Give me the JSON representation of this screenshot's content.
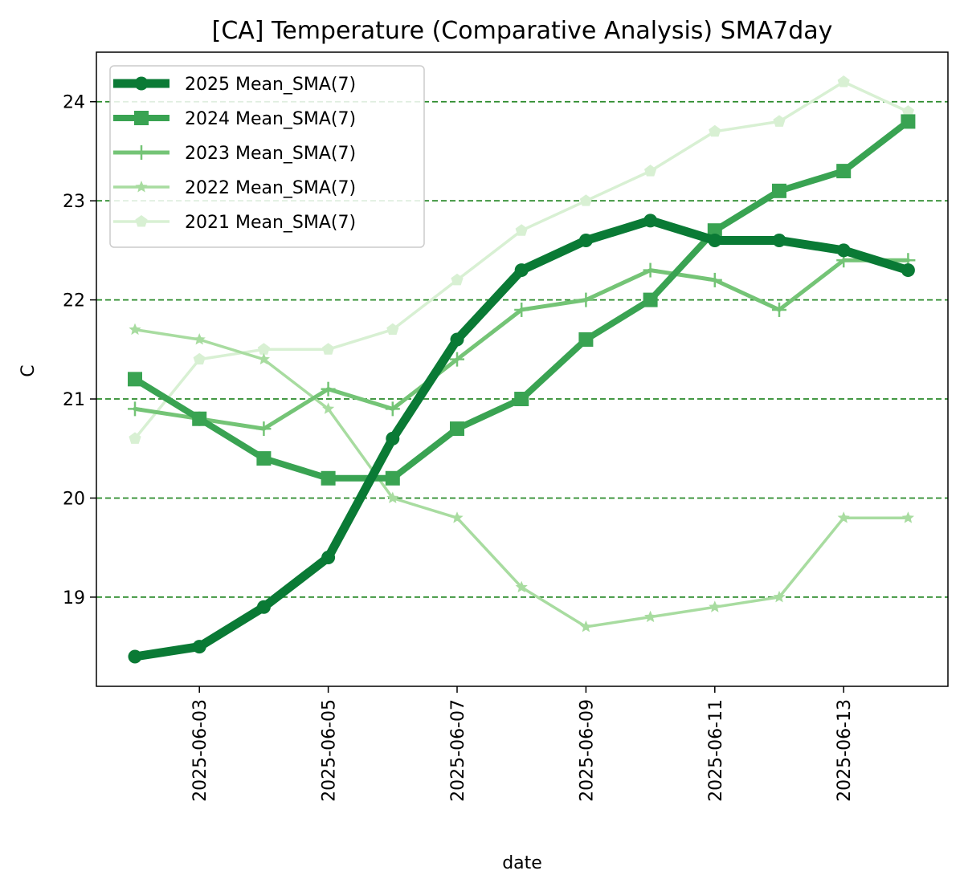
{
  "chart_data": {
    "type": "line",
    "title": "[CA] Temperature (Comparative Analysis) SMA7day",
    "xlabel": "date",
    "ylabel": "C",
    "x": [
      "2025-06-02",
      "2025-06-03",
      "2025-06-04",
      "2025-06-05",
      "2025-06-06",
      "2025-06-07",
      "2025-06-08",
      "2025-06-09",
      "2025-06-10",
      "2025-06-11",
      "2025-06-12",
      "2025-06-13",
      "2025-06-14"
    ],
    "xticks": [
      "2025-06-03",
      "2025-06-05",
      "2025-06-07",
      "2025-06-09",
      "2025-06-11",
      "2025-06-13"
    ],
    "yticks": [
      19,
      20,
      21,
      22,
      23,
      24
    ],
    "ylim": [
      18.1,
      24.5
    ],
    "grid": {
      "axis": "y",
      "style": "dashed",
      "color": "#2a8a2a"
    },
    "legend": "top-left",
    "series": [
      {
        "name": "2025 Mean_SMA(7)",
        "color": "#0a7a35",
        "marker": "circle",
        "lineweight": "heavy",
        "values": [
          18.4,
          18.5,
          18.9,
          19.4,
          20.6,
          21.6,
          22.3,
          22.6,
          22.8,
          22.6,
          22.6,
          22.5,
          22.3
        ]
      },
      {
        "name": "2024 Mean_SMA(7)",
        "color": "#39a352",
        "marker": "square",
        "lineweight": "bold",
        "values": [
          21.2,
          20.8,
          20.4,
          20.2,
          20.2,
          20.7,
          21.0,
          21.6,
          22.0,
          22.7,
          23.1,
          23.3,
          23.8
        ]
      },
      {
        "name": "2023 Mean_SMA(7)",
        "color": "#74c476",
        "marker": "plus",
        "lineweight": "medium",
        "values": [
          20.9,
          20.8,
          20.7,
          21.1,
          20.9,
          21.4,
          21.9,
          22.0,
          22.3,
          22.2,
          21.9,
          22.4,
          22.4
        ]
      },
      {
        "name": "2022 Mean_SMA(7)",
        "color": "#a8dca0",
        "marker": "star",
        "lineweight": "normal",
        "values": [
          21.7,
          21.6,
          21.4,
          20.9,
          20.0,
          19.8,
          19.1,
          18.7,
          18.8,
          18.9,
          19.0,
          19.8,
          19.8
        ]
      },
      {
        "name": "2021 Mean_SMA(7)",
        "color": "#d8f0d3",
        "marker": "pentagon",
        "lineweight": "normal",
        "values": [
          20.6,
          21.4,
          21.5,
          21.5,
          21.7,
          22.2,
          22.7,
          23.0,
          23.3,
          23.7,
          23.8,
          24.2,
          23.9
        ]
      }
    ]
  }
}
